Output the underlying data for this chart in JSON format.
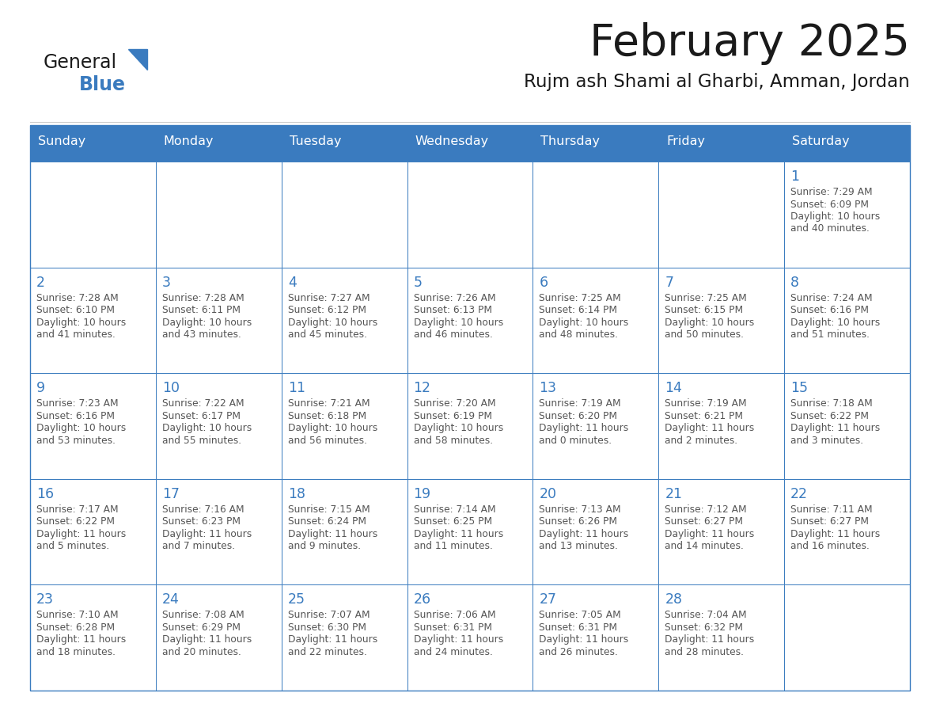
{
  "title": "February 2025",
  "subtitle": "Rujm ash Shami al Gharbi, Amman, Jordan",
  "header_bg_color": "#3a7bbf",
  "header_text_color": "#ffffff",
  "cell_bg_color": "#ffffff",
  "cell_border_color": "#3a7bbf",
  "day_number_color": "#3a7bbf",
  "text_color": "#555555",
  "title_color": "#1a1a1a",
  "days_of_week": [
    "Sunday",
    "Monday",
    "Tuesday",
    "Wednesday",
    "Thursday",
    "Friday",
    "Saturday"
  ],
  "weeks": [
    [
      {
        "day": null
      },
      {
        "day": null
      },
      {
        "day": null
      },
      {
        "day": null
      },
      {
        "day": null
      },
      {
        "day": null
      },
      {
        "day": 1,
        "sunrise": "7:29 AM",
        "sunset": "6:09 PM",
        "daylight": "10 hours and 40 minutes."
      }
    ],
    [
      {
        "day": 2,
        "sunrise": "7:28 AM",
        "sunset": "6:10 PM",
        "daylight": "10 hours and 41 minutes."
      },
      {
        "day": 3,
        "sunrise": "7:28 AM",
        "sunset": "6:11 PM",
        "daylight": "10 hours and 43 minutes."
      },
      {
        "day": 4,
        "sunrise": "7:27 AM",
        "sunset": "6:12 PM",
        "daylight": "10 hours and 45 minutes."
      },
      {
        "day": 5,
        "sunrise": "7:26 AM",
        "sunset": "6:13 PM",
        "daylight": "10 hours and 46 minutes."
      },
      {
        "day": 6,
        "sunrise": "7:25 AM",
        "sunset": "6:14 PM",
        "daylight": "10 hours and 48 minutes."
      },
      {
        "day": 7,
        "sunrise": "7:25 AM",
        "sunset": "6:15 PM",
        "daylight": "10 hours and 50 minutes."
      },
      {
        "day": 8,
        "sunrise": "7:24 AM",
        "sunset": "6:16 PM",
        "daylight": "10 hours and 51 minutes."
      }
    ],
    [
      {
        "day": 9,
        "sunrise": "7:23 AM",
        "sunset": "6:16 PM",
        "daylight": "10 hours and 53 minutes."
      },
      {
        "day": 10,
        "sunrise": "7:22 AM",
        "sunset": "6:17 PM",
        "daylight": "10 hours and 55 minutes."
      },
      {
        "day": 11,
        "sunrise": "7:21 AM",
        "sunset": "6:18 PM",
        "daylight": "10 hours and 56 minutes."
      },
      {
        "day": 12,
        "sunrise": "7:20 AM",
        "sunset": "6:19 PM",
        "daylight": "10 hours and 58 minutes."
      },
      {
        "day": 13,
        "sunrise": "7:19 AM",
        "sunset": "6:20 PM",
        "daylight": "11 hours and 0 minutes."
      },
      {
        "day": 14,
        "sunrise": "7:19 AM",
        "sunset": "6:21 PM",
        "daylight": "11 hours and 2 minutes."
      },
      {
        "day": 15,
        "sunrise": "7:18 AM",
        "sunset": "6:22 PM",
        "daylight": "11 hours and 3 minutes."
      }
    ],
    [
      {
        "day": 16,
        "sunrise": "7:17 AM",
        "sunset": "6:22 PM",
        "daylight": "11 hours and 5 minutes."
      },
      {
        "day": 17,
        "sunrise": "7:16 AM",
        "sunset": "6:23 PM",
        "daylight": "11 hours and 7 minutes."
      },
      {
        "day": 18,
        "sunrise": "7:15 AM",
        "sunset": "6:24 PM",
        "daylight": "11 hours and 9 minutes."
      },
      {
        "day": 19,
        "sunrise": "7:14 AM",
        "sunset": "6:25 PM",
        "daylight": "11 hours and 11 minutes."
      },
      {
        "day": 20,
        "sunrise": "7:13 AM",
        "sunset": "6:26 PM",
        "daylight": "11 hours and 13 minutes."
      },
      {
        "day": 21,
        "sunrise": "7:12 AM",
        "sunset": "6:27 PM",
        "daylight": "11 hours and 14 minutes."
      },
      {
        "day": 22,
        "sunrise": "7:11 AM",
        "sunset": "6:27 PM",
        "daylight": "11 hours and 16 minutes."
      }
    ],
    [
      {
        "day": 23,
        "sunrise": "7:10 AM",
        "sunset": "6:28 PM",
        "daylight": "11 hours and 18 minutes."
      },
      {
        "day": 24,
        "sunrise": "7:08 AM",
        "sunset": "6:29 PM",
        "daylight": "11 hours and 20 minutes."
      },
      {
        "day": 25,
        "sunrise": "7:07 AM",
        "sunset": "6:30 PM",
        "daylight": "11 hours and 22 minutes."
      },
      {
        "day": 26,
        "sunrise": "7:06 AM",
        "sunset": "6:31 PM",
        "daylight": "11 hours and 24 minutes."
      },
      {
        "day": 27,
        "sunrise": "7:05 AM",
        "sunset": "6:31 PM",
        "daylight": "11 hours and 26 minutes."
      },
      {
        "day": 28,
        "sunrise": "7:04 AM",
        "sunset": "6:32 PM",
        "daylight": "11 hours and 28 minutes."
      },
      {
        "day": null
      }
    ]
  ]
}
